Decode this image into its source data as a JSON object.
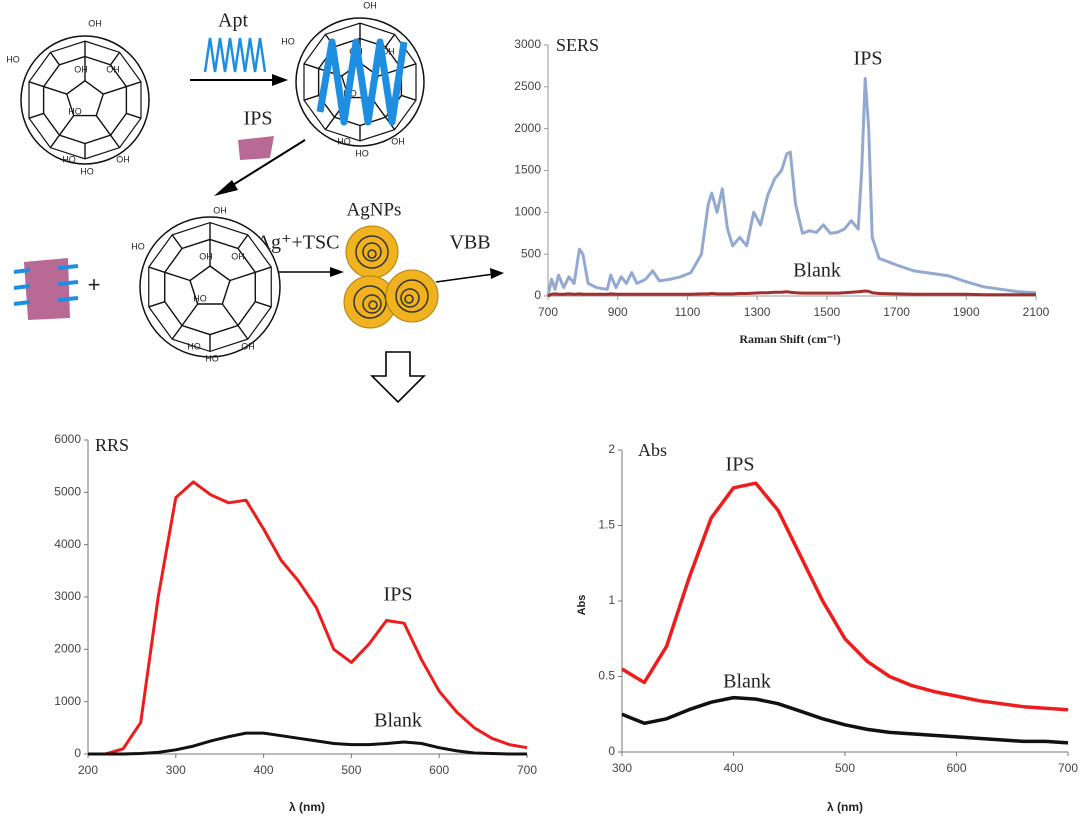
{
  "diagram": {
    "labels": {
      "apt": "Apt",
      "ips": "IPS",
      "reagent": "Ag⁺+TSC",
      "agnps": "AgNPs",
      "vbb": "VBB"
    },
    "hydroxyl_labels": [
      [
        "OH",
        "HO",
        "OH",
        "OH",
        "HO",
        "HO",
        "OH",
        "HO"
      ],
      [
        "OH",
        "HO",
        "OH",
        "OH",
        "HO",
        "HO",
        "OH",
        "HO"
      ],
      [
        "OH",
        "HO",
        "OH",
        "OH",
        "HO",
        "HO",
        "OH",
        "HO"
      ]
    ]
  },
  "chart_data": [
    {
      "type": "line",
      "title": "SERS",
      "xlabel": "Raman Shift (cm⁻¹)",
      "annotations": [
        "IPS",
        "Blank"
      ],
      "xlim": [
        700,
        2100
      ],
      "xticks": [
        700,
        900,
        1100,
        1300,
        1500,
        1700,
        1900,
        2100
      ],
      "ylim": [
        0,
        3000
      ],
      "yticks": [
        0,
        500,
        1000,
        1500,
        2000,
        2500,
        3000
      ],
      "x": [
        700,
        710,
        720,
        730,
        745,
        760,
        775,
        790,
        800,
        815,
        840,
        870,
        880,
        895,
        910,
        925,
        940,
        955,
        980,
        1000,
        1020,
        1050,
        1080,
        1110,
        1140,
        1160,
        1170,
        1185,
        1200,
        1215,
        1230,
        1250,
        1270,
        1290,
        1310,
        1330,
        1350,
        1370,
        1385,
        1395,
        1410,
        1430,
        1450,
        1470,
        1490,
        1510,
        1530,
        1550,
        1570,
        1590,
        1600,
        1610,
        1620,
        1630,
        1650,
        1700,
        1750,
        1800,
        1850,
        1900,
        1950,
        2000,
        2050,
        2100
      ],
      "series": [
        {
          "name": "IPS",
          "color": "#94a9cf",
          "values": [
            0,
            200,
            80,
            250,
            100,
            230,
            150,
            560,
            500,
            150,
            100,
            80,
            250,
            100,
            230,
            150,
            280,
            150,
            200,
            300,
            180,
            200,
            230,
            280,
            500,
            1100,
            1230,
            1000,
            1280,
            800,
            600,
            700,
            600,
            1000,
            850,
            1200,
            1400,
            1500,
            1700,
            1720,
            1100,
            750,
            780,
            760,
            850,
            750,
            760,
            800,
            900,
            800,
            1500,
            2600,
            2000,
            700,
            450,
            370,
            300,
            270,
            240,
            170,
            110,
            80,
            50,
            40
          ]
        },
        {
          "name": "Blank",
          "color": "#a0302e",
          "values": [
            0,
            20,
            25,
            20,
            20,
            25,
            20,
            25,
            20,
            20,
            20,
            20,
            25,
            20,
            20,
            20,
            20,
            20,
            20,
            20,
            20,
            20,
            20,
            20,
            25,
            25,
            30,
            25,
            25,
            25,
            25,
            30,
            30,
            35,
            40,
            40,
            45,
            45,
            50,
            45,
            40,
            35,
            35,
            35,
            35,
            35,
            35,
            40,
            45,
            50,
            55,
            60,
            55,
            40,
            30,
            25,
            20,
            20,
            20,
            20,
            15,
            15,
            15,
            15
          ]
        }
      ]
    },
    {
      "type": "line",
      "title": "RRS",
      "xlabel": "λ (nm)",
      "annotations": [
        "IPS",
        "Blank"
      ],
      "xlim": [
        200,
        700
      ],
      "xticks": [
        200,
        300,
        400,
        500,
        600,
        700
      ],
      "ylim": [
        0,
        6000
      ],
      "yticks": [
        0,
        1000,
        2000,
        3000,
        4000,
        5000,
        6000
      ],
      "x": [
        200,
        220,
        240,
        260,
        280,
        300,
        320,
        340,
        360,
        380,
        400,
        420,
        440,
        460,
        480,
        500,
        520,
        540,
        560,
        580,
        600,
        620,
        640,
        660,
        680,
        700
      ],
      "series": [
        {
          "name": "IPS",
          "color": "#ee1c1c",
          "values": [
            0,
            0,
            100,
            600,
            3000,
            4900,
            5200,
            4950,
            4800,
            4850,
            4300,
            3700,
            3300,
            2800,
            2000,
            1750,
            2100,
            2550,
            2500,
            1800,
            1200,
            800,
            500,
            300,
            180,
            120
          ]
        },
        {
          "name": "Blank",
          "color": "#111111",
          "values": [
            0,
            0,
            0,
            10,
            30,
            80,
            150,
            250,
            330,
            400,
            400,
            350,
            300,
            250,
            200,
            180,
            180,
            200,
            230,
            200,
            120,
            60,
            20,
            10,
            0,
            0
          ]
        }
      ]
    },
    {
      "type": "line",
      "title": "Abs",
      "xlabel": "λ (nm)",
      "ylabel": "Abs",
      "annotations": [
        "IPS",
        "Blank"
      ],
      "xlim": [
        300,
        700
      ],
      "xticks": [
        300,
        400,
        500,
        600,
        700
      ],
      "ylim": [
        0,
        2
      ],
      "yticks": [
        0,
        0.5,
        1,
        1.5,
        2
      ],
      "x": [
        300,
        320,
        340,
        360,
        380,
        400,
        420,
        440,
        460,
        480,
        500,
        520,
        540,
        560,
        580,
        600,
        620,
        640,
        660,
        680,
        700
      ],
      "series": [
        {
          "name": "IPS",
          "color": "#ee1c1c",
          "values": [
            0.55,
            0.46,
            0.7,
            1.15,
            1.55,
            1.75,
            1.78,
            1.6,
            1.3,
            1.0,
            0.75,
            0.6,
            0.5,
            0.44,
            0.4,
            0.37,
            0.34,
            0.32,
            0.3,
            0.29,
            0.28
          ]
        },
        {
          "name": "Blank",
          "color": "#111111",
          "values": [
            0.25,
            0.19,
            0.22,
            0.28,
            0.33,
            0.36,
            0.35,
            0.32,
            0.27,
            0.22,
            0.18,
            0.15,
            0.13,
            0.12,
            0.11,
            0.1,
            0.09,
            0.08,
            0.07,
            0.07,
            0.06
          ]
        }
      ]
    }
  ]
}
